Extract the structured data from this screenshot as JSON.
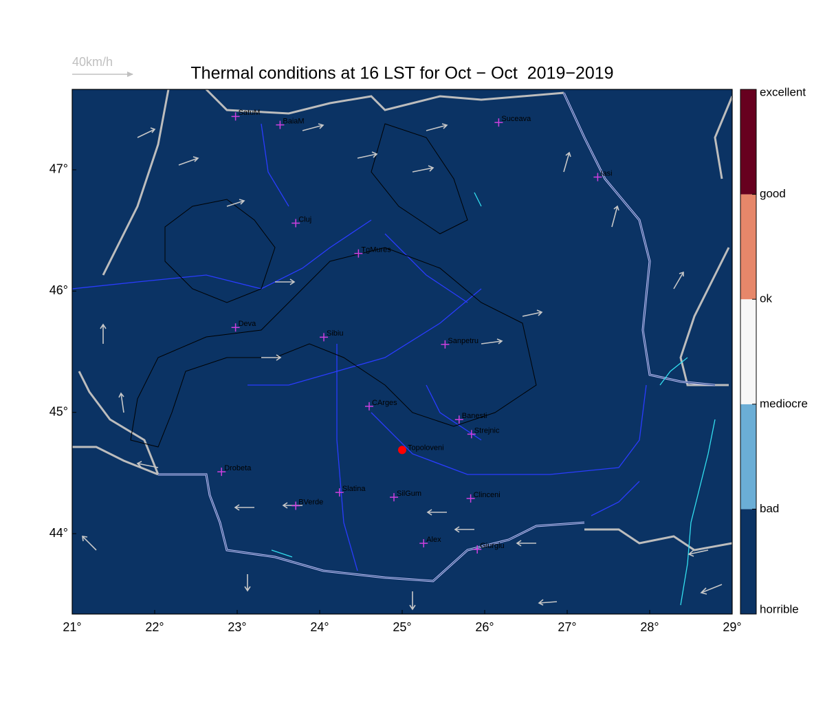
{
  "map": {
    "title": "Thermal conditions at 16 LST for Oct − Oct  2019−2019",
    "scale_label": "40km/h",
    "background": "#0b3364",
    "xlim": [
      21,
      29.0
    ],
    "ylim": [
      43.337,
      47.663
    ],
    "xticks": [
      {
        "value": 21,
        "label": "21°"
      },
      {
        "value": 22,
        "label": "22°"
      },
      {
        "value": 23,
        "label": "23°"
      },
      {
        "value": 24,
        "label": "24°"
      },
      {
        "value": 25,
        "label": "25°"
      },
      {
        "value": 26,
        "label": "26°"
      },
      {
        "value": 27,
        "label": "27°"
      },
      {
        "value": 28,
        "label": "28°"
      },
      {
        "value": 29,
        "label": "29°"
      }
    ],
    "yticks": [
      {
        "value": 44,
        "label": "44°"
      },
      {
        "value": 45,
        "label": "45°"
      },
      {
        "value": 46,
        "label": "46°"
      },
      {
        "value": 47,
        "label": "47°"
      }
    ],
    "cities": [
      {
        "name": "SatuM",
        "lon": 22.98,
        "lat": 47.44
      },
      {
        "name": "BaiaM",
        "lon": 23.52,
        "lat": 47.37
      },
      {
        "name": "Suceava",
        "lon": 26.17,
        "lat": 47.39
      },
      {
        "name": "Iasi",
        "lon": 27.37,
        "lat": 46.94
      },
      {
        "name": "Cluj",
        "lon": 23.71,
        "lat": 46.56
      },
      {
        "name": "TgMures",
        "lon": 24.47,
        "lat": 46.31
      },
      {
        "name": "Deva",
        "lon": 22.98,
        "lat": 45.7
      },
      {
        "name": "Sibiu",
        "lon": 24.05,
        "lat": 45.62
      },
      {
        "name": "Sanpetru",
        "lon": 25.52,
        "lat": 45.56
      },
      {
        "name": "CArges",
        "lon": 24.6,
        "lat": 45.05
      },
      {
        "name": "Banesti",
        "lon": 25.69,
        "lat": 44.94
      },
      {
        "name": "Strejnic",
        "lon": 25.84,
        "lat": 44.82
      },
      {
        "name": "Drobeta",
        "lon": 22.81,
        "lat": 44.51
      },
      {
        "name": "Slatina",
        "lon": 24.24,
        "lat": 44.34
      },
      {
        "name": "SilGum",
        "lon": 24.9,
        "lat": 44.3
      },
      {
        "name": "Clinceni",
        "lon": 25.83,
        "lat": 44.29
      },
      {
        "name": "BVerde",
        "lon": 23.71,
        "lat": 44.23
      },
      {
        "name": "Alex",
        "lon": 25.26,
        "lat": 43.92
      },
      {
        "name": "Giurgiu",
        "lon": 25.91,
        "lat": 43.87
      }
    ],
    "site": {
      "name": "Topoloveni",
      "lon": 25.0,
      "lat": 44.69,
      "color": "#ff0000"
    },
    "colorbar": {
      "labels": [
        "horrible",
        "bad",
        "mediocre",
        "ok",
        "good",
        "excellent"
      ],
      "colors": [
        "#0b3364",
        "#6baed6",
        "#f7f7f7",
        "#e6876a",
        "#67001f"
      ]
    }
  }
}
